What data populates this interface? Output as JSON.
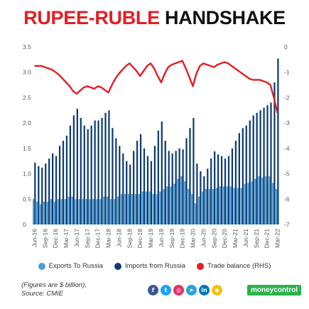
{
  "header": {
    "title_part1": "RUPEE-RUBLE",
    "title_part2": "HANDSHAKE"
  },
  "legend": [
    {
      "label": "Exports To Russia",
      "color": "#4a9fd8"
    },
    {
      "label": "Imports from Russia",
      "color": "#0d3b70"
    },
    {
      "label": "Trade balance (RHS)",
      "color": "#e31e24"
    }
  ],
  "footer": {
    "note_line1": "(Figures are $ billion),",
    "note_line2": "Source: CMIE",
    "brand": "moneycontrol",
    "socials": [
      {
        "icon": "facebook-icon",
        "glyph": "f",
        "color": "#3b5998"
      },
      {
        "icon": "twitter-icon",
        "glyph": "t",
        "color": "#1da1f2"
      },
      {
        "icon": "instagram-icon",
        "glyph": "◎",
        "color": "#e1306c"
      },
      {
        "icon": "telegram-icon",
        "glyph": "➤",
        "color": "#2aa3d9"
      },
      {
        "icon": "linkedin-icon",
        "glyph": "in",
        "color": "#0077b5"
      },
      {
        "icon": "snapchat-icon",
        "glyph": "◆",
        "color": "#f4c20d"
      }
    ]
  },
  "chart_data": {
    "type": "bar",
    "title": "RUPEE-RUBLE HANDSHAKE",
    "categories": [
      "Jun-16",
      "Jul-16",
      "Aug-16",
      "Sep-16",
      "Oct-16",
      "Nov-16",
      "Dec-16",
      "Jan-17",
      "Feb-17",
      "Mar-17",
      "Apr-17",
      "May-17",
      "Jun-17",
      "Jul-17",
      "Aug-17",
      "Sep-17",
      "Oct-17",
      "Nov-17",
      "Dec-17",
      "Jan-18",
      "Feb-18",
      "Mar-18",
      "Apr-18",
      "May-18",
      "Jun-18",
      "Jul-18",
      "Aug-18",
      "Sep-18",
      "Oct-18",
      "Nov-18",
      "Dec-18",
      "Jan-19",
      "Feb-19",
      "Mar-19",
      "Apr-19",
      "May-19",
      "Jun-19",
      "Jul-19",
      "Aug-19",
      "Sep-19",
      "Oct-19",
      "Nov-19",
      "Dec-19",
      "Jan-20",
      "Feb-20",
      "Mar-20",
      "Apr-20",
      "May-20",
      "Jun-20",
      "Jul-20",
      "Aug-20",
      "Sep-20",
      "Oct-20",
      "Nov-20",
      "Dec-20",
      "Jan-21",
      "Feb-21",
      "Mar-21",
      "Apr-21",
      "May-21",
      "Jun-21",
      "Jul-21",
      "Aug-21",
      "Sep-21",
      "Oct-21",
      "Nov-21",
      "Dec-21",
      "Jan-22",
      "Feb-22",
      "Mar-22"
    ],
    "x_tick_labels": [
      "Jun-16",
      "Sep-16",
      "Dec-16",
      "Mar-17",
      "Jun-17",
      "Sep-17",
      "Dec-17",
      "Mar-18",
      "Jun-18",
      "Sep-18",
      "Dec-18",
      "Mar-19",
      "Jun-19",
      "Sep-19",
      "Dec-19",
      "Mar-20",
      "Jun-20",
      "Sep-20",
      "Dec-20",
      "Mar-21",
      "Jun-21",
      "Sep-21",
      "Dec-21",
      "Mar-22"
    ],
    "series": [
      {
        "name": "Exports To Russia",
        "axis": "left",
        "kind": "bar",
        "color": "#4a9fd8",
        "values": [
          0.5,
          0.45,
          0.4,
          0.45,
          0.45,
          0.5,
          0.45,
          0.5,
          0.5,
          0.5,
          0.55,
          0.55,
          0.5,
          0.5,
          0.5,
          0.5,
          0.5,
          0.5,
          0.5,
          0.5,
          0.55,
          0.55,
          0.5,
          0.5,
          0.55,
          0.6,
          0.6,
          0.6,
          0.6,
          0.6,
          0.6,
          0.65,
          0.65,
          0.65,
          0.6,
          0.6,
          0.65,
          0.7,
          0.75,
          0.75,
          0.8,
          0.9,
          0.95,
          0.85,
          0.7,
          0.6,
          0.42,
          0.55,
          0.65,
          0.7,
          0.7,
          0.7,
          0.72,
          0.75,
          0.75,
          0.75,
          0.75,
          0.72,
          0.72,
          0.72,
          0.8,
          0.82,
          0.85,
          0.9,
          0.95,
          0.92,
          0.95,
          0.95,
          0.82,
          0.7
        ]
      },
      {
        "name": "Imports from Russia",
        "axis": "left",
        "kind": "bar",
        "color": "#0d3b70",
        "values": [
          1.22,
          1.15,
          1.12,
          1.2,
          1.3,
          1.4,
          1.35,
          1.55,
          1.65,
          1.75,
          1.95,
          2.15,
          2.28,
          2.1,
          1.95,
          1.88,
          1.95,
          2.05,
          2.05,
          2.1,
          2.2,
          2.25,
          1.9,
          1.7,
          1.55,
          1.4,
          1.25,
          1.18,
          1.45,
          1.65,
          1.78,
          1.5,
          1.35,
          1.25,
          1.55,
          1.85,
          2.03,
          1.65,
          1.45,
          1.4,
          1.45,
          1.5,
          1.48,
          1.7,
          1.9,
          2.1,
          1.2,
          1.05,
          0.95,
          1.1,
          1.3,
          1.44,
          1.38,
          1.35,
          1.3,
          1.35,
          1.5,
          1.65,
          1.8,
          1.9,
          1.95,
          2.05,
          2.15,
          2.2,
          2.25,
          2.3,
          2.35,
          2.4,
          2.8,
          3.27
        ]
      },
      {
        "name": "Trade balance (RHS)",
        "axis": "right",
        "kind": "line",
        "color": "#e31e24",
        "values": [
          -0.75,
          -0.75,
          -0.75,
          -0.8,
          -0.85,
          -0.9,
          -1.0,
          -1.1,
          -1.25,
          -1.4,
          -1.55,
          -1.75,
          -1.85,
          -1.72,
          -1.6,
          -1.55,
          -1.6,
          -1.65,
          -1.55,
          -1.6,
          -1.7,
          -1.8,
          -1.5,
          -1.25,
          -1.05,
          -0.9,
          -0.75,
          -0.65,
          -0.8,
          -0.95,
          -1.15,
          -0.95,
          -0.75,
          -0.65,
          -0.85,
          -1.15,
          -1.4,
          -1.05,
          -0.8,
          -0.7,
          -0.65,
          -0.6,
          -0.55,
          -0.85,
          -1.2,
          -1.55,
          -1.05,
          -0.75,
          -0.65,
          -0.7,
          -0.75,
          -0.8,
          -0.7,
          -0.65,
          -0.6,
          -0.65,
          -0.75,
          -0.85,
          -0.95,
          -1.05,
          -1.15,
          -1.25,
          -1.3,
          -1.3,
          -1.3,
          -1.35,
          -1.4,
          -1.5,
          -2.0,
          -2.6
        ]
      }
    ],
    "y_left": {
      "min": 0,
      "max": 3.5,
      "ticks": [
        "0",
        "0.5",
        "1.0",
        "1.5",
        "2.0",
        "2.5",
        "3.0",
        "3.5"
      ]
    },
    "y_right": {
      "min": -7,
      "max": 0,
      "ticks": [
        "0",
        "-1",
        "-2",
        "-3",
        "-4",
        "-5",
        "-6",
        "-7"
      ]
    },
    "grid": false,
    "legend_position": "bottom"
  }
}
